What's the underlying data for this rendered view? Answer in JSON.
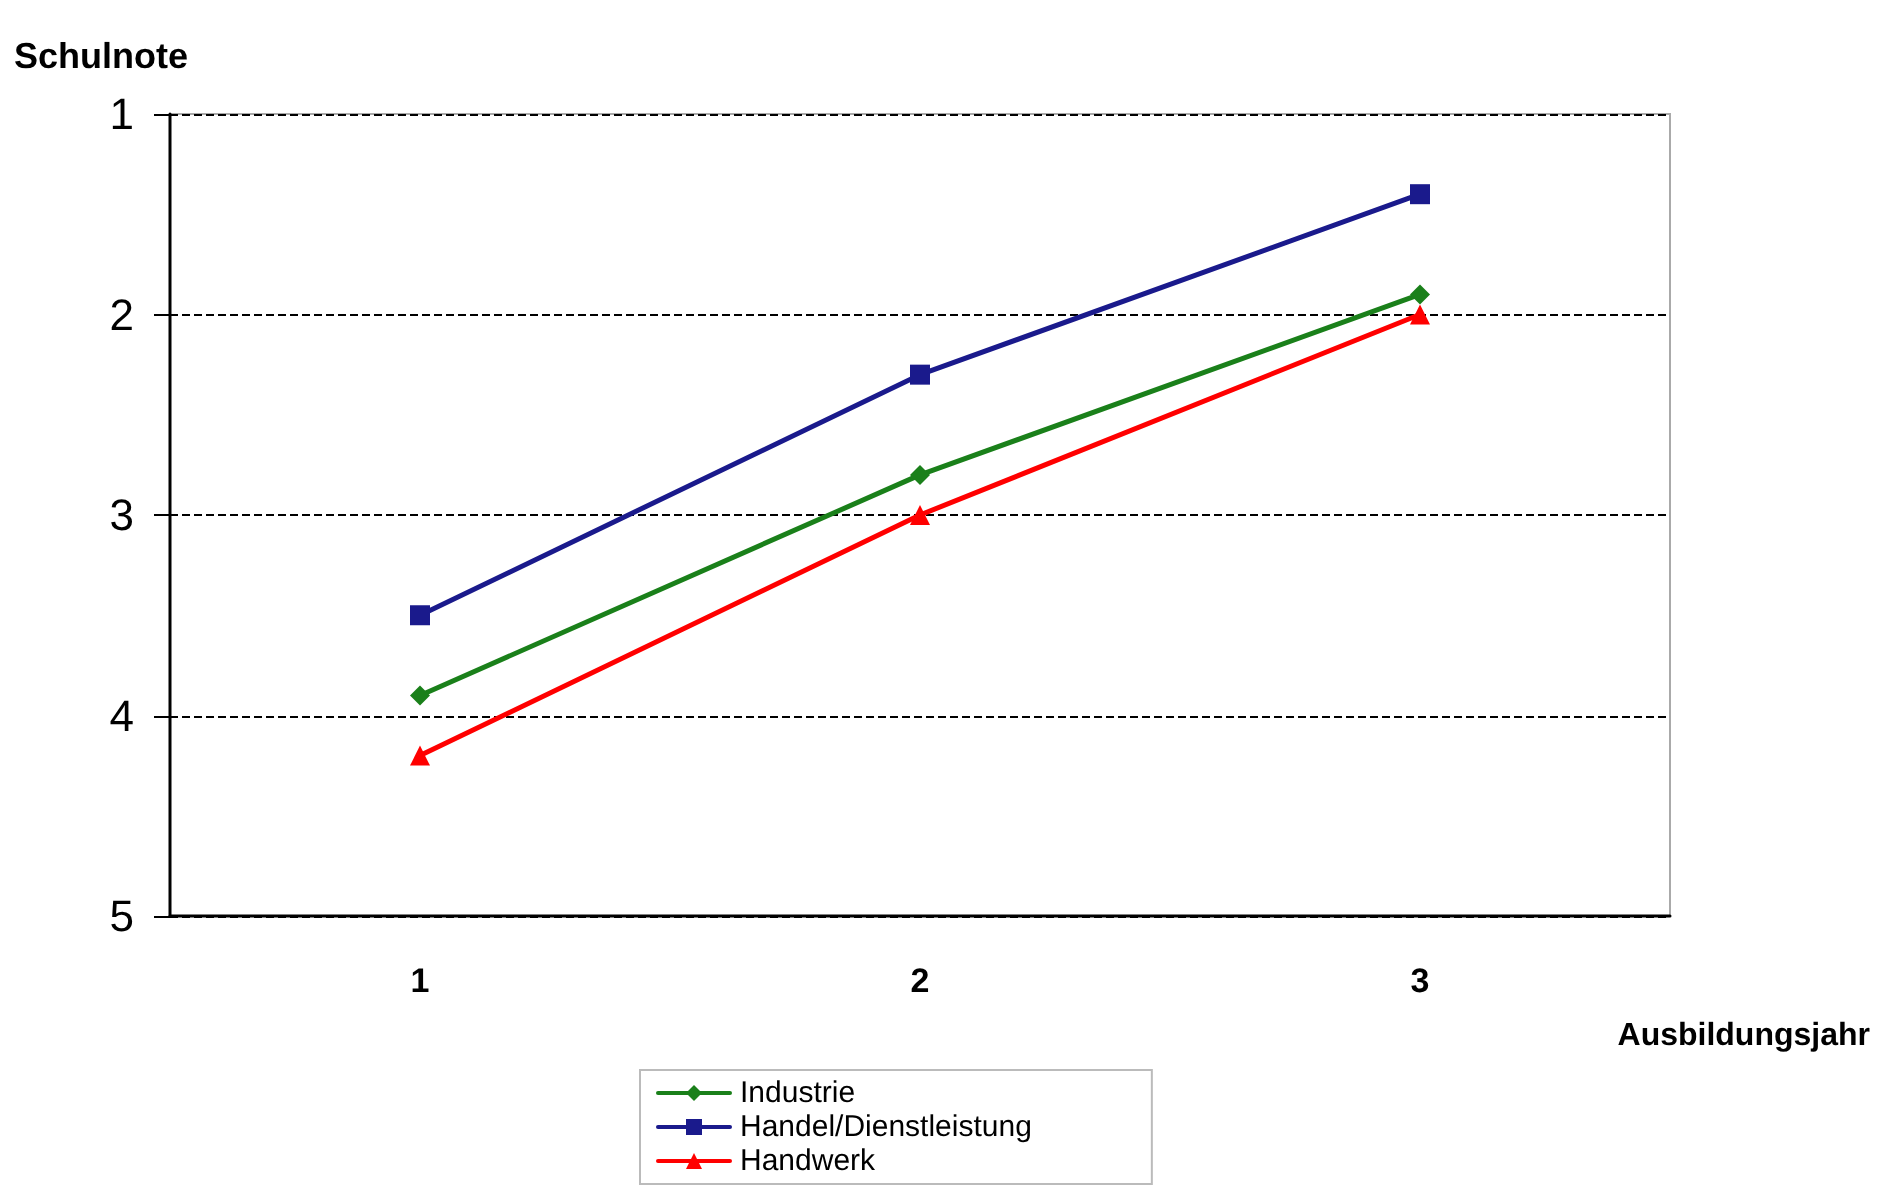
{
  "chart_data": {
    "type": "line",
    "xlabel": "Ausbildungsjahr",
    "ylabel": "Schulnote",
    "categories": [
      "1",
      "2",
      "3"
    ],
    "series": [
      {
        "name": "Industrie",
        "color": "#1a801a",
        "marker": "diamond",
        "values": [
          3.9,
          2.8,
          1.9
        ]
      },
      {
        "name": "Handel/Dienstleistung",
        "color": "#1a1a8c",
        "marker": "square",
        "values": [
          3.5,
          2.3,
          1.4
        ]
      },
      {
        "name": "Handwerk",
        "color": "#ff0000",
        "marker": "triangle",
        "values": [
          4.2,
          3.0,
          2.0
        ]
      }
    ],
    "ylim": [
      5,
      1
    ],
    "yticks": [
      1,
      2,
      3,
      4,
      5
    ],
    "grid": "y",
    "legend": "bottom",
    "line_style": "solid"
  }
}
